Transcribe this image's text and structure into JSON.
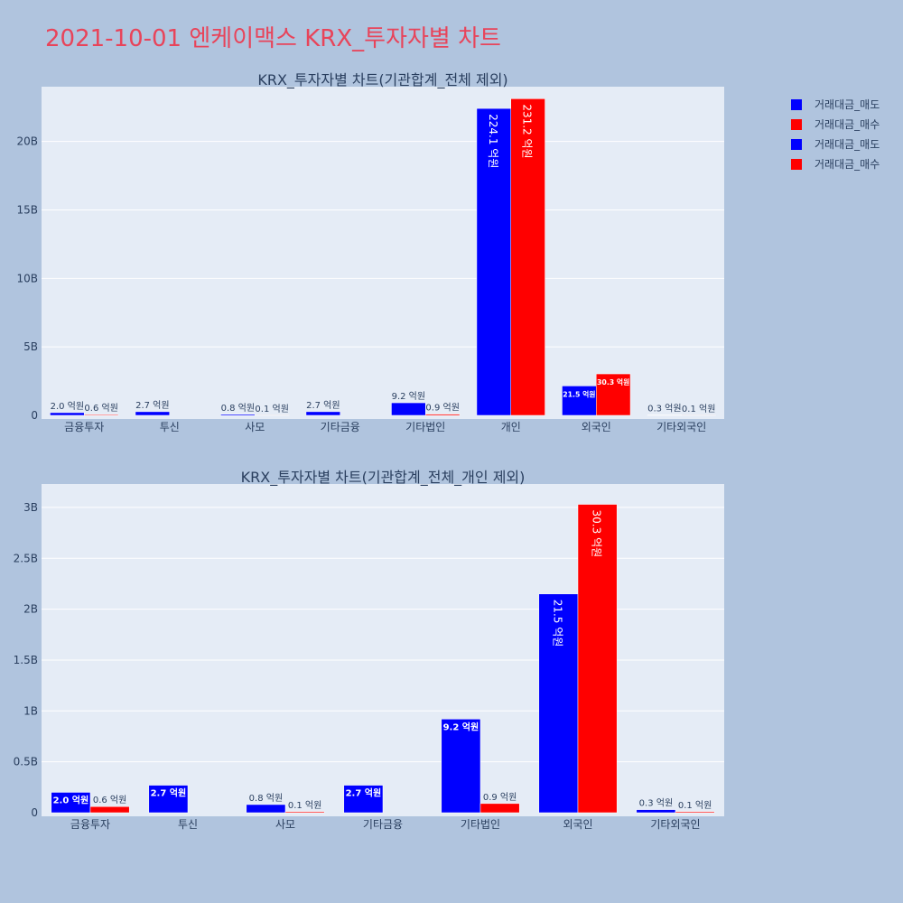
{
  "title": "2021-10-01 엔케이맥스 KRX_투자자별 차트",
  "legend": {
    "items": [
      {
        "name": "거래대금_매도",
        "color": "#0000ff"
      },
      {
        "name": "거래대금_매수",
        "color": "#ff0000"
      },
      {
        "name": "거래대금_매도",
        "color": "#0000ff"
      },
      {
        "name": "거래대금_매수",
        "color": "#ff0000"
      }
    ]
  },
  "chart_data": [
    {
      "type": "bar",
      "title": "KRX_투자자별 차트(기관합계_전체 제외)",
      "categories": [
        "금융투자",
        "투신",
        "사모",
        "기타금융",
        "기타법인",
        "개인",
        "외국인",
        "기타외국인"
      ],
      "ylim": [
        0,
        24000000000
      ],
      "yticks": [
        {
          "value": 0,
          "label": "0"
        },
        {
          "value": 5000000000,
          "label": "5B"
        },
        {
          "value": 10000000000,
          "label": "10B"
        },
        {
          "value": 15000000000,
          "label": "15B"
        },
        {
          "value": 20000000000,
          "label": "20B"
        }
      ],
      "grid": true,
      "series": [
        {
          "name": "거래대금_매도",
          "color": "#0000ff",
          "values": [
            200000000,
            270000000,
            80000000,
            270000000,
            920000000,
            22410000000,
            2150000000,
            30000000
          ],
          "labels": [
            "2.0 억원",
            "2.7 억원",
            "0.8 억원",
            "2.7 억원",
            "9.2 억원",
            "224.1 억원",
            "21.5 억원",
            "0.3 억원"
          ]
        },
        {
          "name": "거래대금_매수",
          "color": "#ff0000",
          "values": [
            60000000,
            0,
            10000000,
            0,
            90000000,
            23120000000,
            3030000000,
            10000000
          ],
          "labels": [
            "0.6 억원",
            "",
            "0.1 억원",
            "",
            "0.9 억원",
            "231.2 억원",
            "30.3 억원",
            "0.1 억원"
          ]
        }
      ]
    },
    {
      "type": "bar",
      "title": "KRX_투자자별 차트(기관합계_전체_개인 제외)",
      "categories": [
        "금융투자",
        "투신",
        "사모",
        "기타금융",
        "기타법인",
        "외국인",
        "기타외국인"
      ],
      "ylim": [
        0,
        3230000000
      ],
      "yticks": [
        {
          "value": 0,
          "label": "0"
        },
        {
          "value": 500000000,
          "label": "0.5B"
        },
        {
          "value": 1000000000,
          "label": "1B"
        },
        {
          "value": 1500000000,
          "label": "1.5B"
        },
        {
          "value": 2000000000,
          "label": "2B"
        },
        {
          "value": 2500000000,
          "label": "2.5B"
        },
        {
          "value": 3000000000,
          "label": "3B"
        }
      ],
      "grid": true,
      "series": [
        {
          "name": "거래대금_매도",
          "color": "#0000ff",
          "values": [
            200000000,
            270000000,
            80000000,
            270000000,
            920000000,
            2150000000,
            30000000
          ],
          "labels": [
            "2.0 억원",
            "2.7 억원",
            "0.8 억원",
            "2.7 억원",
            "9.2 억원",
            "21.5 억원",
            "0.3 억원"
          ]
        },
        {
          "name": "거래대금_매수",
          "color": "#ff0000",
          "values": [
            60000000,
            0,
            10000000,
            0,
            90000000,
            3030000000,
            10000000
          ],
          "labels": [
            "0.6 억원",
            "",
            "0.1 억원",
            "",
            "0.9 억원",
            "30.3 억원",
            "0.1 억원"
          ]
        }
      ]
    }
  ]
}
